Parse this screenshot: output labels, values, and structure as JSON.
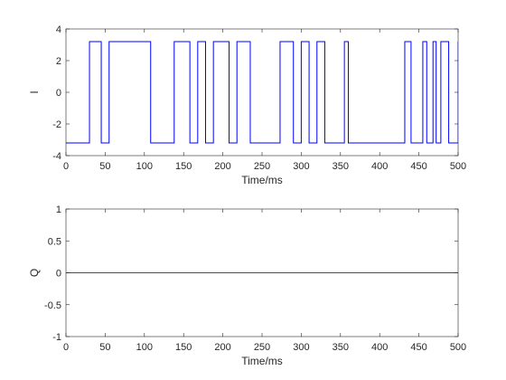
{
  "chart_data": [
    {
      "type": "line",
      "xlabel": "Time/ms",
      "ylabel": "I",
      "xlim": [
        0,
        500
      ],
      "ylim": [
        -4,
        4
      ],
      "xticks": [
        0,
        50,
        100,
        150,
        200,
        250,
        300,
        350,
        400,
        450,
        500
      ],
      "yticks": [
        -4,
        -2,
        0,
        2,
        4
      ],
      "grid": false,
      "series": [
        {
          "color": "#0000ff",
          "step": true,
          "x": [
            0,
            30,
            45,
            55,
            108,
            138,
            158,
            168,
            178,
            188,
            208,
            218,
            235,
            273,
            290,
            300,
            310,
            320,
            330,
            355,
            360,
            385,
            432,
            440,
            455,
            460,
            468,
            472,
            478,
            488,
            500
          ],
          "y": [
            -3.2,
            3.2,
            -3.2,
            3.2,
            -3.2,
            3.2,
            -3.2,
            3.2,
            -3.2,
            3.2,
            -3.2,
            3.2,
            -3.2,
            3.2,
            -3.2,
            3.2,
            -3.2,
            3.2,
            -3.2,
            3.2,
            -3.2,
            -3.2,
            3.2,
            -3.2,
            3.2,
            -3.2,
            3.2,
            -3.2,
            3.2,
            -3.2,
            3.2
          ]
        }
      ]
    },
    {
      "type": "line",
      "xlabel": "Time/ms",
      "ylabel": "Q",
      "xlim": [
        0,
        500
      ],
      "ylim": [
        -1,
        1
      ],
      "xticks": [
        0,
        50,
        100,
        150,
        200,
        250,
        300,
        350,
        400,
        450,
        500
      ],
      "yticks": [
        -1,
        -0.5,
        0,
        0.5,
        1
      ],
      "grid": false,
      "series": [
        {
          "color": "#ff0000",
          "step": false,
          "x": [
            0,
            500
          ],
          "y": [
            0,
            0
          ]
        }
      ]
    }
  ]
}
